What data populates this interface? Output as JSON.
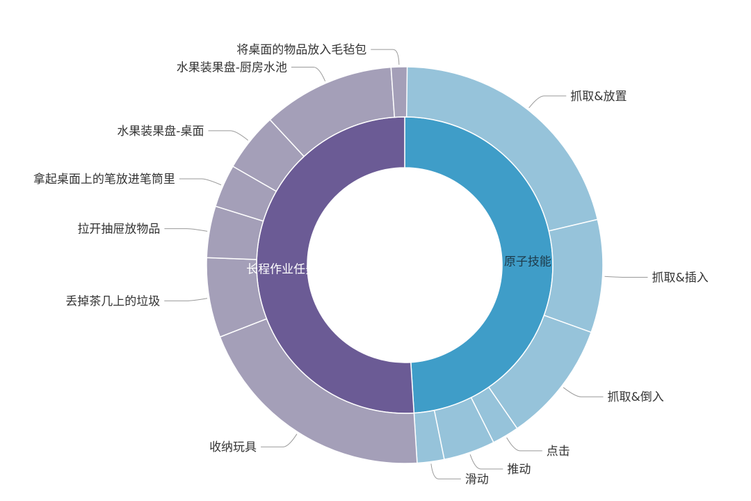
{
  "chart_data": {
    "type": "sunburst",
    "unit": "percent (estimated from arc angles)",
    "start_angle": "top, clockwise",
    "colors": {
      "inner": [
        "#3f9dc8",
        "#6b5b95"
      ],
      "outer": [
        "#96c3da",
        "#a49fb8"
      ]
    },
    "groups": [
      {
        "name": "原子技能",
        "value": 49.0,
        "children": [
          {
            "name": "抓取&放置",
            "value": 21.3
          },
          {
            "name": "抓取&插入",
            "value": 9.2
          },
          {
            "name": "抓取&倒入",
            "value": 9.9
          },
          {
            "name": "点击",
            "value": 2.2
          },
          {
            "name": "推动",
            "value": 4.2
          },
          {
            "name": "滑动",
            "value": 2.2
          }
        ]
      },
      {
        "name": "长程作业任务",
        "value": 51.0,
        "children": [
          {
            "name": "收纳玩具",
            "value": 20.1
          },
          {
            "name": "丢掉茶几上的垃圾",
            "value": 6.5
          },
          {
            "name": "拉开抽屉放物品",
            "value": 4.2
          },
          {
            "name": "拿起桌面上的笔放进笔筒里",
            "value": 3.5
          },
          {
            "name": "水果装果盘-桌面",
            "value": 4.8
          },
          {
            "name": "水果装果盘-厨房水池",
            "value": 10.8
          },
          {
            "name": "将桌面的物品放入毛毡包",
            "value": 1.3
          }
        ]
      }
    ]
  }
}
